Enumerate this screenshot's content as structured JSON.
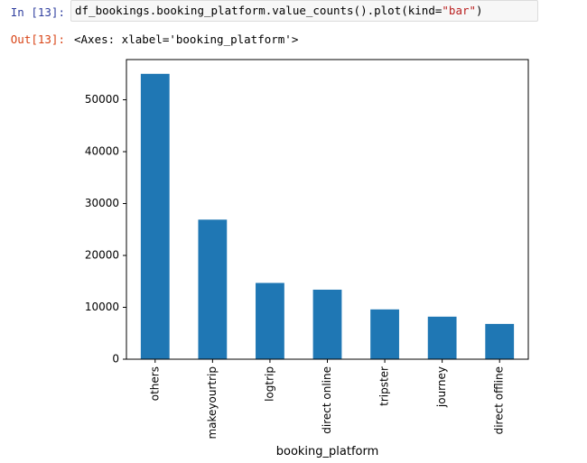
{
  "cell": {
    "in_prompt": "In [13]:",
    "code_prefix": "df_bookings.booking_platform.value_counts().plot(kind=",
    "code_string": "\"bar\"",
    "code_suffix": ")",
    "out_prompt": "Out[13]:",
    "out_text": "<Axes: xlabel='booking_platform'>"
  },
  "chart_data": {
    "type": "bar",
    "categories": [
      "others",
      "makeyourtrip",
      "logtrip",
      "direct online",
      "tripster",
      "journey",
      "direct offline"
    ],
    "values": [
      55000,
      26900,
      14700,
      13400,
      9600,
      8200,
      6800
    ],
    "xlabel": "booking_platform",
    "ylabel": "",
    "ylim": [
      0,
      57750
    ],
    "yticks": [
      0,
      10000,
      20000,
      30000,
      40000,
      50000
    ],
    "ytick_labels": [
      "0",
      "10000",
      "20000",
      "30000",
      "40000",
      "50000"
    ],
    "bar_color": "#1f77b4",
    "grid": false
  }
}
